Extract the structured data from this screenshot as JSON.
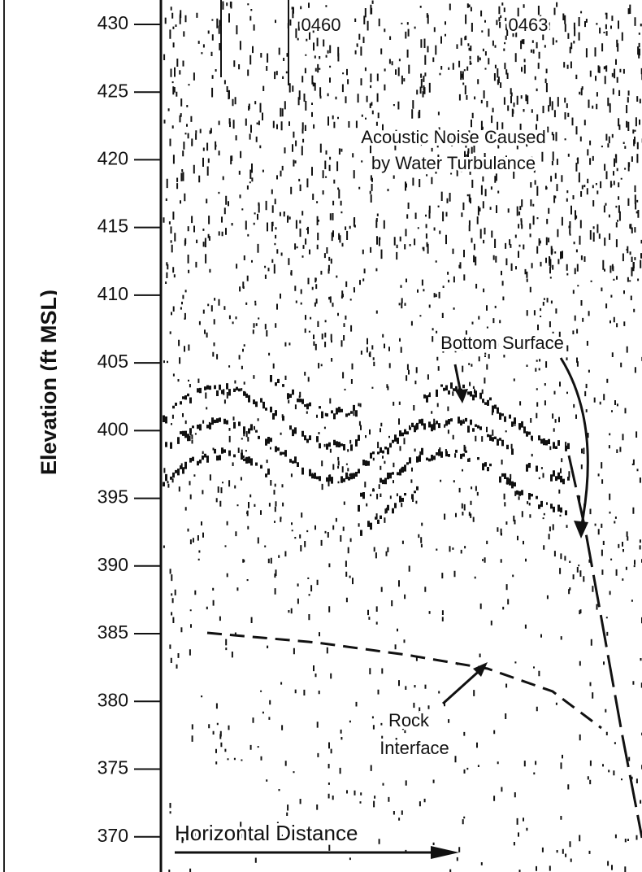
{
  "chart_data": {
    "type": "profile",
    "y_label": "Elevation (ft MSL)",
    "ylim": [
      367.4,
      431.8
    ],
    "yticks": [
      370,
      375,
      380,
      385,
      390,
      395,
      400,
      405,
      410,
      415,
      420,
      425,
      430
    ],
    "annotations": {
      "marker_1": "0460",
      "marker_2": "0463",
      "noise_line_1": "Acoustic Noise Caused",
      "noise_line_2": "by Water Turbulance",
      "bottom": "Bottom Surface",
      "rock_line_1": "Rock",
      "rock_line_2": "Interface",
      "x_label": "Horizontal Distance"
    }
  }
}
